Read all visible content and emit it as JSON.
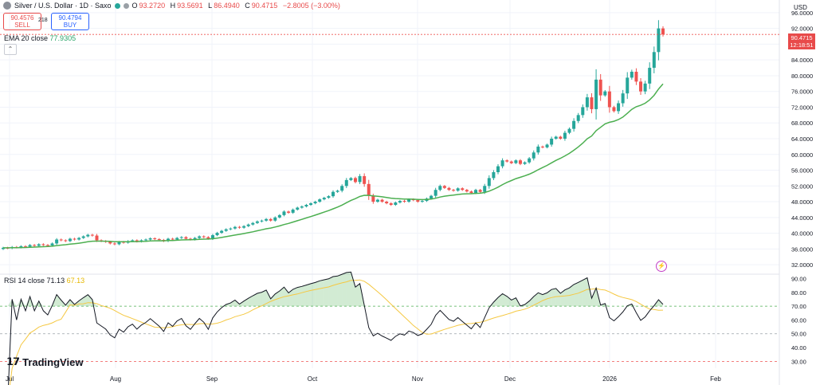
{
  "header": {
    "symbol": "Silver / U.S. Dollar · 1D · Saxo",
    "open_label": "O",
    "open": "93.2720",
    "high_label": "H",
    "high": "93.5691",
    "low_label": "L",
    "low": "86.4940",
    "close_label": "C",
    "close": "90.4715",
    "change": "−2.8005 (−3.00%)"
  },
  "trade": {
    "sell_price": "90.4576",
    "sell_label": "SELL",
    "spread": "218",
    "buy_price": "90.4794",
    "buy_label": "BUY"
  },
  "ema": {
    "label": "EMA 20 close",
    "value": "77.9305"
  },
  "rsi": {
    "label": "RSI 14 close",
    "value": "71.13",
    "ma_value": "67.13"
  },
  "brand": "TradingView",
  "axis": {
    "unit": "USD",
    "last_price": "90.4715",
    "countdown": "12:18:51"
  },
  "colors": {
    "up": "#26a69a",
    "down": "#ef5350",
    "ema": "#4caf50",
    "rsi": "#131722",
    "rsi_ma": "#f5c842",
    "rsi_fill": "#4caf50",
    "grid": "#f0f3fa"
  },
  "chart_data": {
    "type": "candlestick",
    "x_months": [
      "Jul",
      "Aug",
      "Sep",
      "Oct",
      "Nov",
      "Dec",
      "2026",
      "Feb"
    ],
    "price_axis": {
      "ylim": [
        30,
        98
      ],
      "ticks": [
        "96.0000",
        "92.0000",
        "88.0000",
        "84.0000",
        "80.0000",
        "76.0000",
        "72.0000",
        "68.0000",
        "64.0000",
        "60.0000",
        "56.0000",
        "52.0000",
        "48.0000",
        "44.0000",
        "40.0000",
        "36.0000",
        "32.0000"
      ]
    },
    "rsi_axis": {
      "ylim": [
        25,
        92
      ],
      "ticks": [
        "90.00",
        "80.00",
        "70.00",
        "60.00",
        "50.00",
        "40.00",
        "30.00"
      ],
      "levels": [
        70,
        50,
        30
      ]
    },
    "close_series": [
      36.3,
      36.2,
      36.5,
      36.4,
      36.7,
      36.6,
      37.0,
      36.8,
      37.2,
      37.0,
      36.9,
      37.4,
      38.4,
      38.2,
      38.0,
      38.6,
      38.4,
      38.8,
      39.2,
      39.6,
      39.4,
      38.2,
      38.0,
      37.8,
      37.4,
      37.2,
      37.8,
      37.6,
      38.0,
      38.2,
      37.9,
      38.2,
      38.4,
      38.7,
      38.5,
      38.3,
      38.0,
      38.6,
      38.4,
      38.8,
      39.0,
      38.6,
      38.4,
      38.8,
      39.2,
      39.0,
      38.6,
      39.5,
      40.1,
      40.6,
      41.0,
      41.2,
      41.6,
      41.4,
      41.8,
      42.2,
      42.6,
      43.0,
      43.2,
      43.6,
      43.2,
      44.0,
      44.6,
      45.5,
      45.2,
      46.0,
      46.5,
      46.8,
      47.2,
      47.6,
      48.0,
      48.6,
      49.0,
      49.4,
      50.5,
      50.8,
      52.0,
      53.5,
      54.0,
      53.0,
      54.5,
      52.5,
      49.5,
      48.0,
      48.5,
      48.0,
      47.6,
      47.2,
      47.8,
      48.2,
      48.0,
      48.6,
      48.4,
      48.0,
      48.2,
      48.8,
      49.5,
      51.0,
      52.0,
      51.5,
      51.0,
      50.8,
      51.4,
      51.0,
      50.6,
      50.2,
      51.0,
      50.5,
      52.0,
      54.0,
      55.5,
      57.0,
      58.5,
      58.2,
      57.8,
      58.5,
      57.6,
      58.0,
      59.0,
      60.5,
      62.0,
      61.8,
      62.5,
      64.0,
      64.5,
      64.0,
      65.5,
      66.5,
      68.5,
      70.0,
      72.0,
      74.5,
      71.5,
      79.0,
      75.0,
      76.0,
      72.0,
      71.0,
      73.0,
      75.5,
      79.5,
      81.0,
      78.5,
      76.0,
      78.0,
      82.0,
      86.0,
      92.0,
      90.47
    ],
    "ema20_close_last": 77.9305,
    "rsi14_close_last": 71.13,
    "rsi_ma_last": 67.13
  }
}
